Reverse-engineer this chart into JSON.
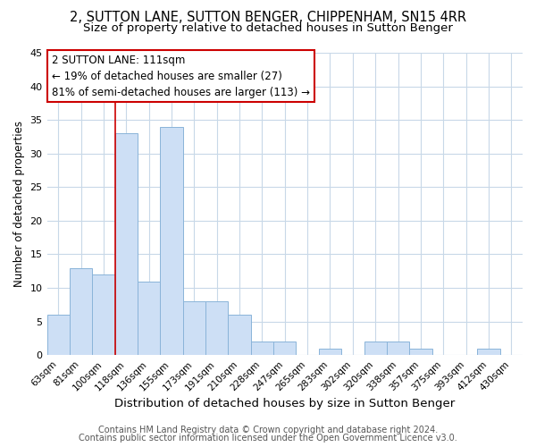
{
  "title": "2, SUTTON LANE, SUTTON BENGER, CHIPPENHAM, SN15 4RR",
  "subtitle": "Size of property relative to detached houses in Sutton Benger",
  "xlabel": "Distribution of detached houses by size in Sutton Benger",
  "ylabel": "Number of detached properties",
  "bar_labels": [
    "63sqm",
    "81sqm",
    "100sqm",
    "118sqm",
    "136sqm",
    "155sqm",
    "173sqm",
    "191sqm",
    "210sqm",
    "228sqm",
    "247sqm",
    "265sqm",
    "283sqm",
    "302sqm",
    "320sqm",
    "338sqm",
    "357sqm",
    "375sqm",
    "393sqm",
    "412sqm",
    "430sqm"
  ],
  "bar_values": [
    6,
    13,
    12,
    33,
    11,
    34,
    8,
    8,
    6,
    2,
    2,
    0,
    1,
    0,
    2,
    2,
    1,
    0,
    0,
    1,
    0
  ],
  "bar_color": "#cddff5",
  "bar_edge_color": "#8ab4d9",
  "background_color": "#ffffff",
  "grid_color": "#c8d8e8",
  "annotation_line1": "2 SUTTON LANE: 111sqm",
  "annotation_line2": "← 19% of detached houses are smaller (27)",
  "annotation_line3": "81% of semi-detached houses are larger (113) →",
  "annotation_box_edge_color": "#cc0000",
  "red_line_x": 2.5,
  "ylim": [
    0,
    45
  ],
  "yticks": [
    0,
    5,
    10,
    15,
    20,
    25,
    30,
    35,
    40,
    45
  ],
  "footer_line1": "Contains HM Land Registry data © Crown copyright and database right 2024.",
  "footer_line2": "Contains public sector information licensed under the Open Government Licence v3.0.",
  "title_fontsize": 10.5,
  "subtitle_fontsize": 9.5,
  "xlabel_fontsize": 9.5,
  "ylabel_fontsize": 8.5,
  "annotation_fontsize": 8.5,
  "footer_fontsize": 7.0,
  "tick_fontsize": 7.5,
  "ytick_fontsize": 8.0
}
